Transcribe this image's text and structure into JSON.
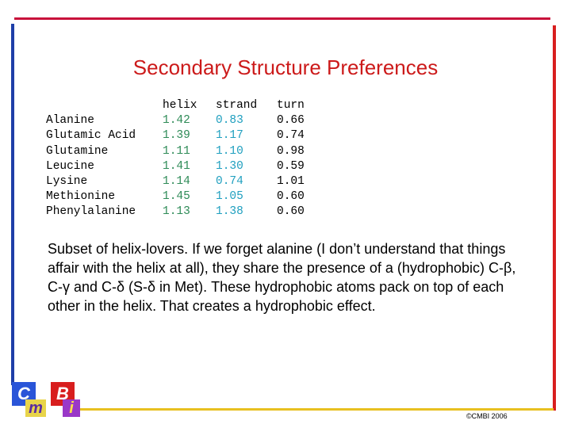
{
  "slide": {
    "title": "Secondary Structure Preferences",
    "body": "Subset of helix-lovers. If we forget alanine (I don’t understand that things affair with the helix at all), they share the presence of a (hydrophobic) C-β, C-γ and C-δ (S-δ in Met). These hydrophobic atoms pack on top of each other in the helix. That creates a hydrophobic effect.",
    "copyright": "©CMBI 2006"
  },
  "colors": {
    "frame_top": "#c8103a",
    "frame_left": "#1e3fa8",
    "frame_right": "#d81e1e",
    "frame_bottom": "#e8c020",
    "title": "#cc1a1a",
    "helix_values": "#2e8b57",
    "strand_values": "#1f9fbf"
  },
  "table": {
    "headers": [
      "",
      "helix",
      "strand",
      "turn"
    ],
    "rows": [
      {
        "name": "Alanine",
        "helix": "1.42",
        "strand": "0.83",
        "turn": "0.66"
      },
      {
        "name": "Glutamic Acid",
        "helix": "1.39",
        "strand": "1.17",
        "turn": "0.74"
      },
      {
        "name": "Glutamine",
        "helix": "1.11",
        "strand": "1.10",
        "turn": "0.98"
      },
      {
        "name": "Leucine",
        "helix": "1.41",
        "strand": "1.30",
        "turn": "0.59"
      },
      {
        "name": "Lysine",
        "helix": "1.14",
        "strand": "0.74",
        "turn": "1.01"
      },
      {
        "name": "Methionine",
        "helix": "1.45",
        "strand": "1.05",
        "turn": "0.60"
      },
      {
        "name": "Phenylalanine",
        "helix": "1.13",
        "strand": "1.38",
        "turn": "0.60"
      }
    ]
  },
  "logo": {
    "letters": [
      "C",
      "m",
      "B",
      "i"
    ]
  }
}
